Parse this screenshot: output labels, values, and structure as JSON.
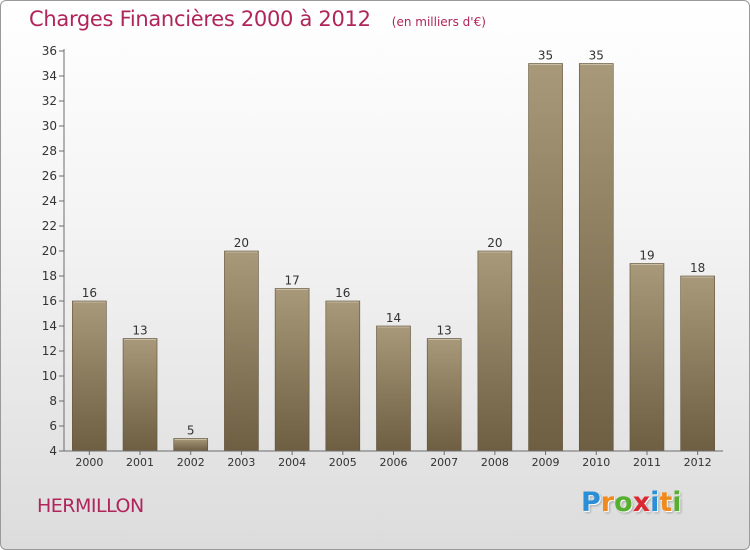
{
  "header": {
    "title": "Charges Financières 2000 à 2012",
    "subtitle": "(en milliers d'€)"
  },
  "footer": {
    "commune": "HERMILLON",
    "logo_letters": [
      "P",
      "r",
      "o",
      "x",
      "i",
      "t",
      "i"
    ],
    "logo_colors": [
      "#2a8fd6",
      "#f08a1c",
      "#56b030",
      "#d9282f",
      "#2a8fd6",
      "#f08a1c",
      "#56b030"
    ]
  },
  "chart_data": {
    "type": "bar",
    "categories": [
      "2000",
      "2001",
      "2002",
      "2003",
      "2004",
      "2005",
      "2006",
      "2007",
      "2008",
      "2009",
      "2010",
      "2011",
      "2012"
    ],
    "values": [
      16,
      13,
      5,
      20,
      17,
      16,
      14,
      13,
      20,
      35,
      35,
      19,
      18
    ],
    "value_labels": [
      "16",
      "13",
      "5",
      "20",
      "17",
      "16",
      "14",
      "13",
      "20",
      "35",
      "35",
      "19",
      "18"
    ],
    "yticks": [
      "4",
      "6",
      "8",
      "10",
      "12",
      "14",
      "16",
      "18",
      "20",
      "22",
      "24",
      "26",
      "28",
      "30",
      "32",
      "34",
      "36"
    ],
    "ylim": [
      4,
      36
    ],
    "grid": false,
    "bar_color_top": "#a8997a",
    "bar_color_bottom": "#6e5e42"
  }
}
